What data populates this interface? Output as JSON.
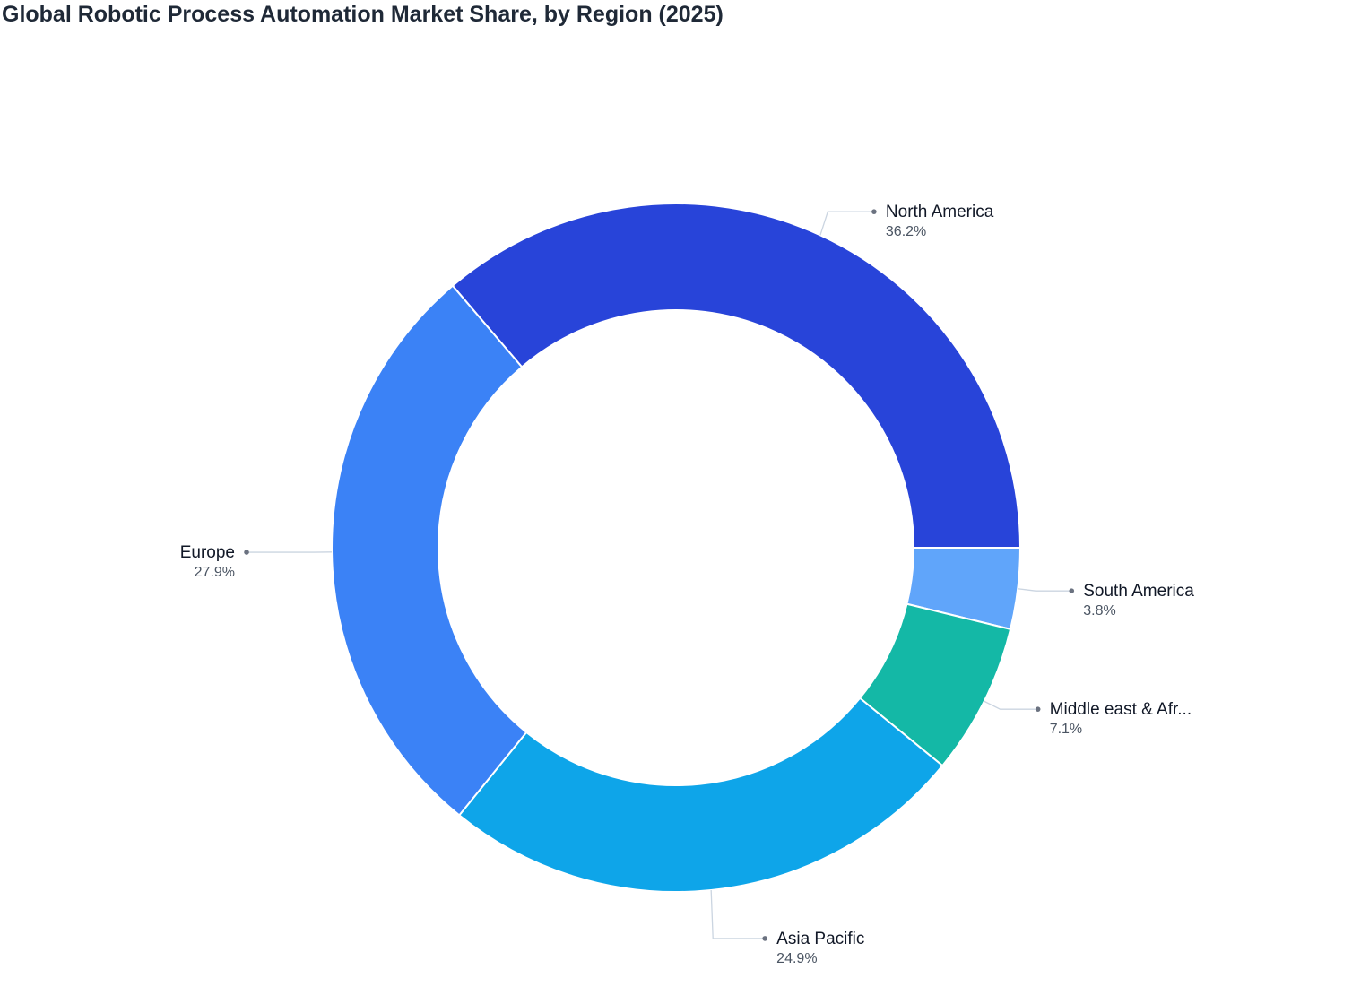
{
  "chart_data": {
    "type": "pie",
    "title": "Global Robotic Process Automation Market Share, by Region (2025)",
    "donut": true,
    "legend": "none",
    "slices": [
      {
        "label": "North America",
        "display_label": "North America",
        "value": 36.2,
        "value_label": "36.2%",
        "color": "#2844d9",
        "label_side": "right"
      },
      {
        "label": "South America",
        "display_label": "South America",
        "value": 3.8,
        "value_label": "3.8%",
        "color": "#60a5fa",
        "label_side": "right"
      },
      {
        "label": "Middle east & Africa",
        "display_label": "Middle east & Afr...",
        "value": 7.1,
        "value_label": "7.1%",
        "color": "#14b8a6",
        "label_side": "right"
      },
      {
        "label": "Asia Pacific",
        "display_label": "Asia Pacific",
        "value": 24.9,
        "value_label": "24.9%",
        "color": "#0ea5e9",
        "label_side": "right"
      },
      {
        "label": "Europe",
        "display_label": "Europe",
        "value": 27.9,
        "value_label": "27.9%",
        "color": "#3b82f6",
        "label_side": "left"
      }
    ]
  }
}
